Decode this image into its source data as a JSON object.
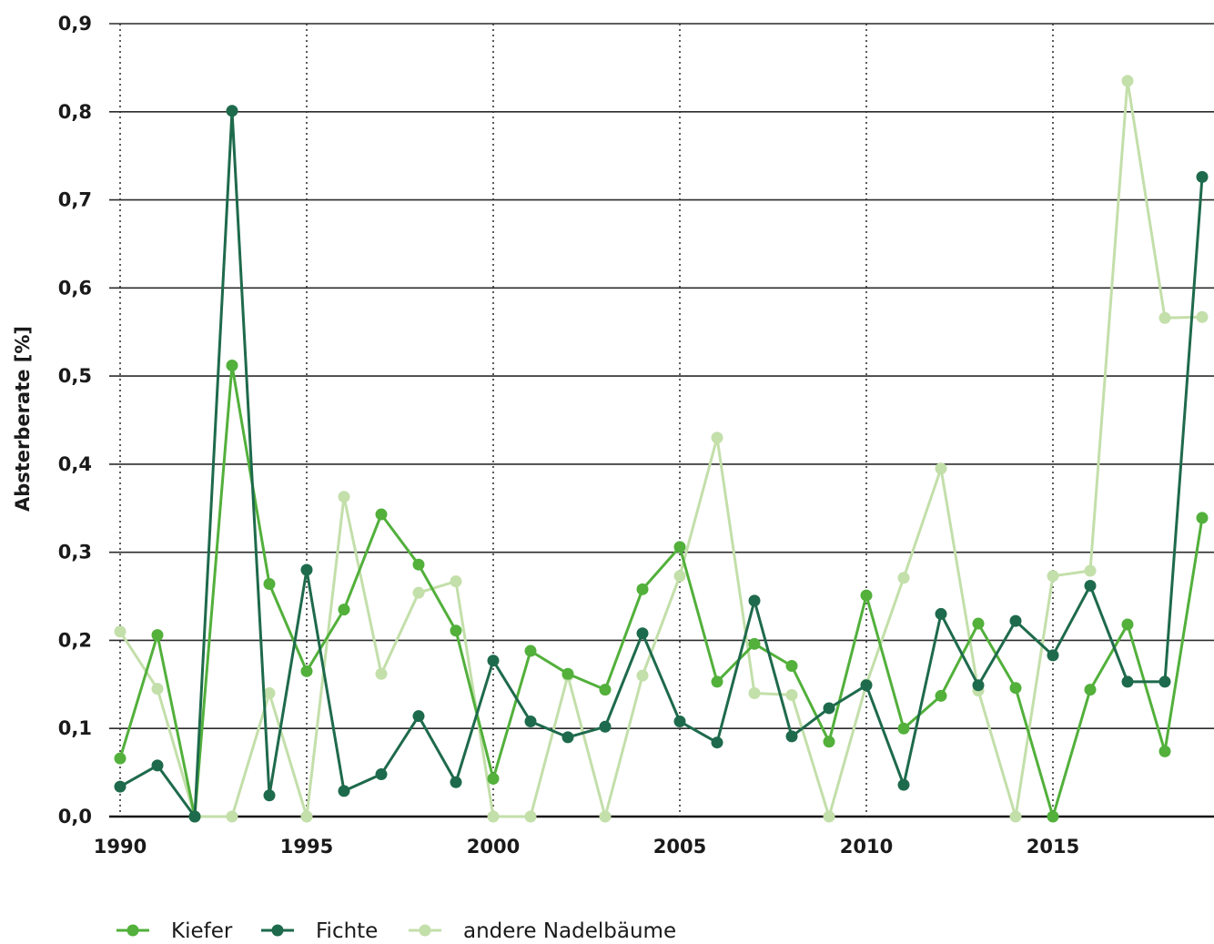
{
  "chart_data": {
    "type": "line",
    "xlabel": "",
    "ylabel": "Absterberate [%]",
    "x": [
      1990,
      1991,
      1992,
      1993,
      1994,
      1995,
      1996,
      1997,
      1998,
      1999,
      2000,
      2001,
      2002,
      2003,
      2004,
      2005,
      2006,
      2007,
      2008,
      2009,
      2010,
      2011,
      2012,
      2013,
      2014,
      2015,
      2016,
      2017,
      2018,
      2019
    ],
    "xlim": [
      1990,
      2019
    ],
    "ylim": [
      0,
      0.9
    ],
    "x_ticks": [
      1990,
      1995,
      2000,
      2005,
      2010,
      2015
    ],
    "x_tick_labels": [
      "1990",
      "1995",
      "2000",
      "2005",
      "2010",
      "2015"
    ],
    "y_ticks": [
      0,
      0.1,
      0.2,
      0.3,
      0.4,
      0.5,
      0.6,
      0.7,
      0.8,
      0.9
    ],
    "y_tick_labels": [
      "0,0",
      "0,1",
      "0,2",
      "0,3",
      "0,4",
      "0,5",
      "0,6",
      "0,7",
      "0,8",
      "0,9"
    ],
    "grid": "horizontal solid lines, vertical dotted lines at labeled years",
    "legend_position": "bottom-left",
    "series": [
      {
        "name": "andere Nadelbäume",
        "color": "#c3dfaa",
        "values": [
          0.21,
          0.145,
          0.0,
          0.0,
          0.14,
          0.0,
          0.363,
          0.162,
          0.254,
          0.267,
          0.0,
          0.0,
          0.16,
          0.0,
          0.16,
          0.273,
          0.43,
          0.14,
          0.138,
          0.0,
          0.15,
          0.271,
          0.395,
          0.143,
          0.0,
          0.273,
          0.279,
          0.835,
          0.566,
          0.567
        ]
      },
      {
        "name": "Kiefer",
        "color": "#52b03b",
        "values": [
          0.066,
          0.206,
          0.0,
          0.512,
          0.264,
          0.165,
          0.235,
          0.343,
          0.286,
          0.211,
          0.043,
          0.188,
          0.162,
          0.144,
          0.258,
          0.306,
          0.153,
          0.196,
          0.171,
          0.085,
          0.251,
          0.1,
          0.137,
          0.219,
          0.146,
          0.0,
          0.144,
          0.218,
          0.074,
          0.339
        ]
      },
      {
        "name": "Fichte",
        "color": "#1e6a4c",
        "values": [
          0.034,
          0.058,
          0.0,
          0.801,
          0.024,
          0.28,
          0.029,
          0.048,
          0.114,
          0.039,
          0.177,
          0.108,
          0.09,
          0.102,
          0.208,
          0.108,
          0.084,
          0.245,
          0.091,
          0.123,
          0.149,
          0.036,
          0.23,
          0.149,
          0.222,
          0.183,
          0.262,
          0.153,
          0.153,
          0.726
        ]
      }
    ],
    "legend": [
      {
        "name": "Kiefer",
        "color": "#52b03b"
      },
      {
        "name": "Fichte",
        "color": "#1e6a4c"
      },
      {
        "name": "andere Nadelbäume",
        "color": "#c3dfaa"
      }
    ]
  }
}
